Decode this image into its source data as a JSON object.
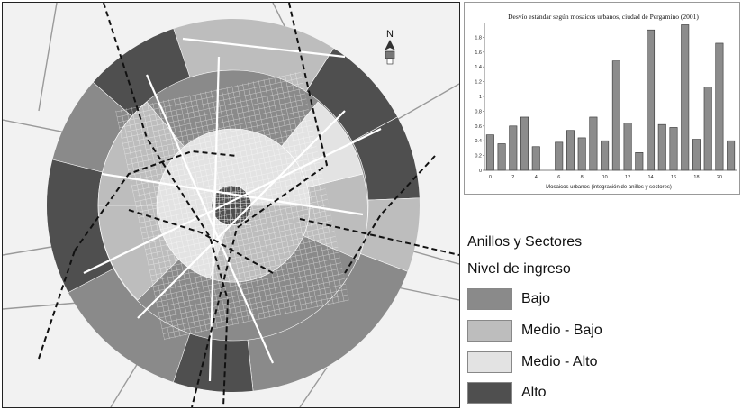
{
  "map": {
    "north_letter": "N",
    "north_icon": "compass-north-arrow-icon",
    "colors": {
      "bajo": "#8a8a8a",
      "medio_bajo": "#bdbdbd",
      "medio_alto": "#e3e3e3",
      "alto": "#4f4f4f",
      "background": "#f2f2f2",
      "streets": "#ffffff"
    }
  },
  "chart_data": {
    "type": "bar",
    "title": "Desvío estándar según mosaicos urbanos, ciudad de Pergamino (2001)",
    "xlabel": "Mosaicos urbanos (integración de anillos y sectores)",
    "ylabel": "",
    "x": [
      0,
      1,
      2,
      3,
      4,
      5,
      6,
      7,
      8,
      9,
      10,
      11,
      12,
      13,
      14,
      15,
      16,
      17,
      18,
      19,
      20,
      21
    ],
    "values": [
      0.48,
      0.36,
      0.6,
      0.72,
      0.32,
      null,
      0.38,
      0.54,
      0.44,
      0.72,
      0.4,
      1.48,
      0.64,
      0.24,
      1.9,
      0.62,
      0.58,
      1.97,
      0.42,
      1.13,
      1.72,
      0.4
    ],
    "x_tick_labels": [
      "0",
      "2",
      "4",
      "6",
      "8",
      "10",
      "12",
      "14",
      "16",
      "18",
      "20"
    ],
    "y_tick_labels": [
      "0",
      "0.2",
      "0.4",
      "0.6",
      "0.8",
      "1",
      "1.2",
      "1.4",
      "1.6",
      "1.8"
    ],
    "ylim": [
      0,
      2
    ],
    "grid": false,
    "bar_color": "#8c8c8c"
  },
  "legend": {
    "title": "Anillos y Sectores",
    "subtitle": "Nivel de ingreso",
    "items": [
      {
        "label": "Bajo",
        "color": "#8a8a8a"
      },
      {
        "label": "Medio - Bajo",
        "color": "#bdbdbd"
      },
      {
        "label": "Medio - Alto",
        "color": "#e3e3e3"
      },
      {
        "label": "Alto",
        "color": "#4f4f4f"
      }
    ]
  }
}
